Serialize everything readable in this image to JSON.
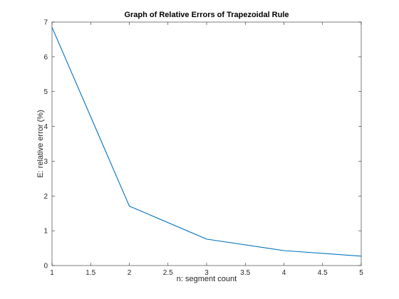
{
  "chart_data": {
    "type": "line",
    "title": "Graph of Relative Errors of Trapezoidal Rule",
    "xlabel": "n: segment count",
    "ylabel": "E: relative error (%)",
    "xlim": [
      1,
      5
    ],
    "ylim": [
      0,
      7
    ],
    "xticks": [
      "1",
      "1.5",
      "2",
      "2.5",
      "3",
      "3.5",
      "4",
      "4.5",
      "5"
    ],
    "yticks": [
      "0",
      "1",
      "2",
      "3",
      "4",
      "5",
      "6",
      "7"
    ],
    "grid": false,
    "series": [
      {
        "x": [
          1,
          2,
          3,
          4,
          5
        ],
        "y": [
          6.85,
          1.71,
          0.76,
          0.43,
          0.27
        ],
        "color": "#0072bd"
      }
    ]
  }
}
